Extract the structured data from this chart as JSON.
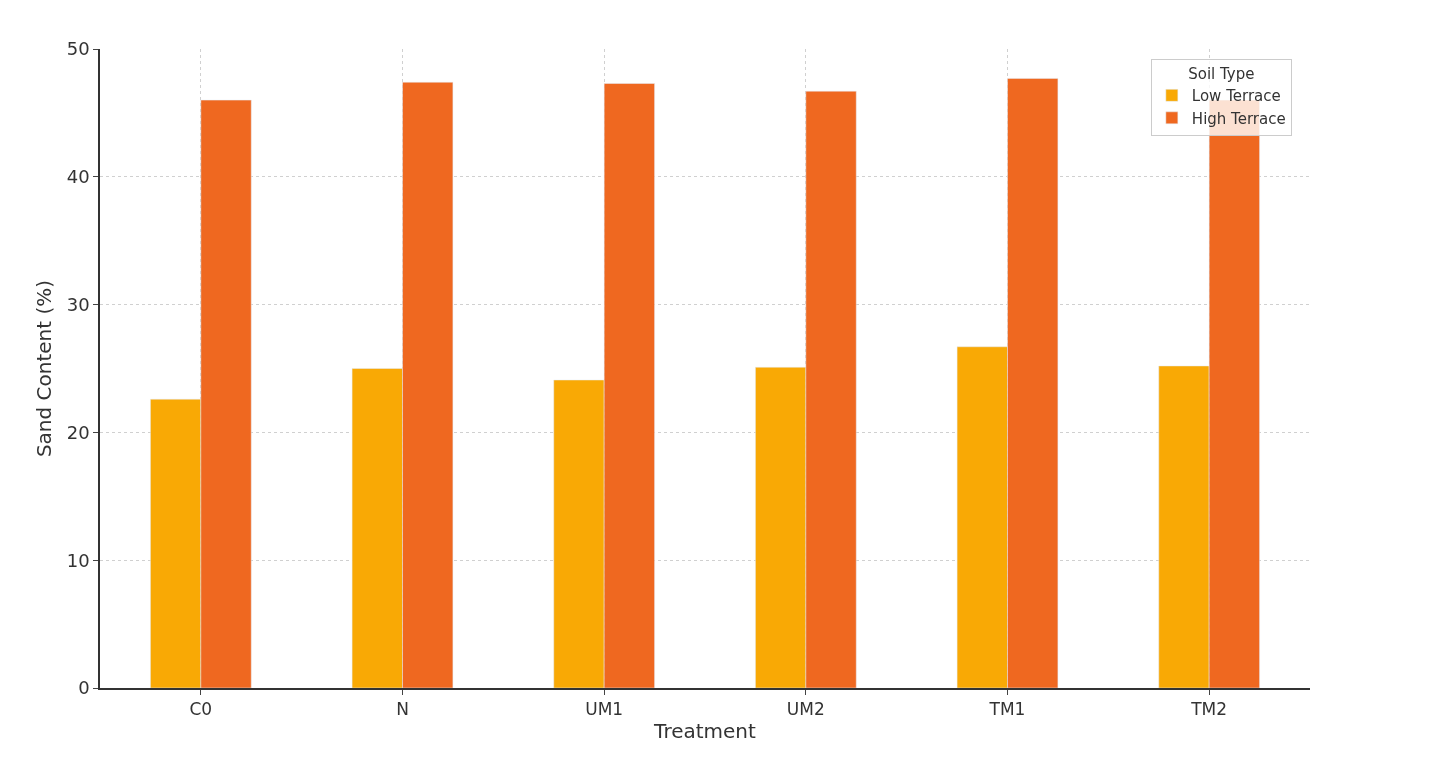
{
  "chart_data": {
    "type": "bar",
    "xlabel": "Treatment",
    "ylabel": "Sand Content (%)",
    "legend_title": "Soil Type",
    "categories": [
      "C0",
      "N",
      "UM1",
      "UM2",
      "TM1",
      "TM2"
    ],
    "series": [
      {
        "name": "Low Terrace",
        "color": "#f9a905",
        "values": [
          22.6,
          25.0,
          24.1,
          25.1,
          26.7,
          25.2
        ]
      },
      {
        "name": "High Terrace",
        "color": "#ef6820",
        "values": [
          46.0,
          47.4,
          47.3,
          46.7,
          47.7,
          46.0
        ]
      }
    ],
    "ylim": [
      0,
      50
    ],
    "yticks": [
      0,
      10,
      20,
      30,
      40,
      50
    ],
    "grid": true,
    "legend": "top right"
  }
}
